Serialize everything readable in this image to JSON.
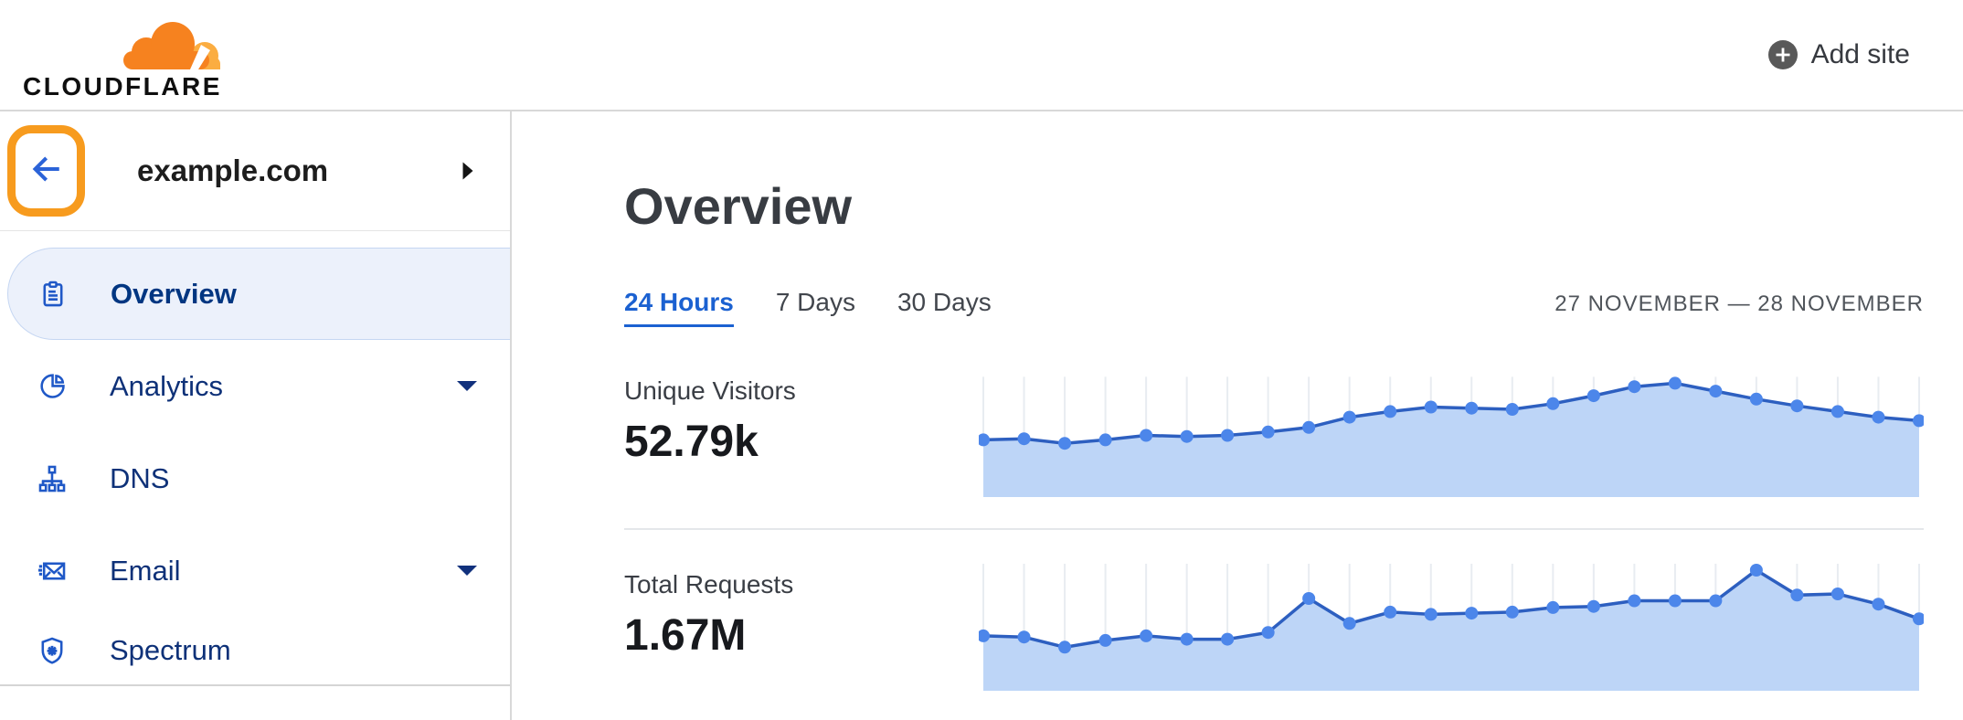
{
  "header": {
    "logo_text": "CLOUDFLARE",
    "add_site_label": "Add site"
  },
  "sidebar": {
    "site_name": "example.com",
    "items": [
      {
        "label": "Overview",
        "icon": "clipboard-icon",
        "active": true,
        "caret": false
      },
      {
        "label": "Analytics",
        "icon": "pie-chart-icon",
        "active": false,
        "caret": true
      },
      {
        "label": "DNS",
        "icon": "sitemap-icon",
        "active": false,
        "caret": false
      },
      {
        "label": "Email",
        "icon": "email-icon",
        "active": false,
        "caret": true
      },
      {
        "label": "Spectrum",
        "icon": "shield-icon",
        "active": false,
        "caret": false
      }
    ]
  },
  "main": {
    "title": "Overview",
    "tabs": [
      {
        "label": "24 Hours",
        "active": true
      },
      {
        "label": "7 Days",
        "active": false
      },
      {
        "label": "30 Days",
        "active": false
      }
    ],
    "date_range": "27 NOVEMBER — 28 NOVEMBER",
    "metrics": [
      {
        "label": "Unique Visitors",
        "value": "52.79k"
      },
      {
        "label": "Total Requests",
        "value": "1.67M"
      }
    ]
  },
  "colors": {
    "brand_orange": "#F6821F",
    "brand_orange_light": "#FBAD41",
    "annotation_orange": "#F79B1E",
    "link_blue": "#1B61D1",
    "nav_active_text": "#003681",
    "nav_text": "#0E3178",
    "nav_icon_blue": "#1F58C7",
    "nav_active_bg": "#ECF1FB",
    "back_arrow_blue": "#2B63D8",
    "chart_dot": "#4C86EA",
    "chart_line": "#2D5FC0",
    "chart_fill": "#BDD5F7",
    "chart_grid": "#E8ECF1"
  },
  "chart_data": [
    {
      "type": "area",
      "title": "Unique Visitors",
      "total_label": "52.79k",
      "x_range": "24 hourly points, 27 November — 28 November",
      "grid": "vertical gridlines per point",
      "legend": "none",
      "axis_labels": "none shown",
      "relative_values": [
        44,
        45,
        41,
        44,
        48,
        47,
        48,
        51,
        55,
        64,
        69,
        73,
        72,
        71,
        76,
        83,
        91,
        94,
        87,
        80,
        74,
        69,
        64,
        61
      ]
    },
    {
      "type": "area",
      "title": "Total Requests",
      "total_label": "1.67M",
      "x_range": "24 hourly points, 27 November — 28 November",
      "grid": "vertical gridlines per point",
      "legend": "none",
      "axis_labels": "none shown",
      "relative_values": [
        42,
        41,
        32,
        38,
        42,
        39,
        39,
        45,
        75,
        53,
        63,
        61,
        62,
        63,
        67,
        68,
        73,
        73,
        73,
        100,
        78,
        79,
        70,
        57
      ]
    }
  ]
}
